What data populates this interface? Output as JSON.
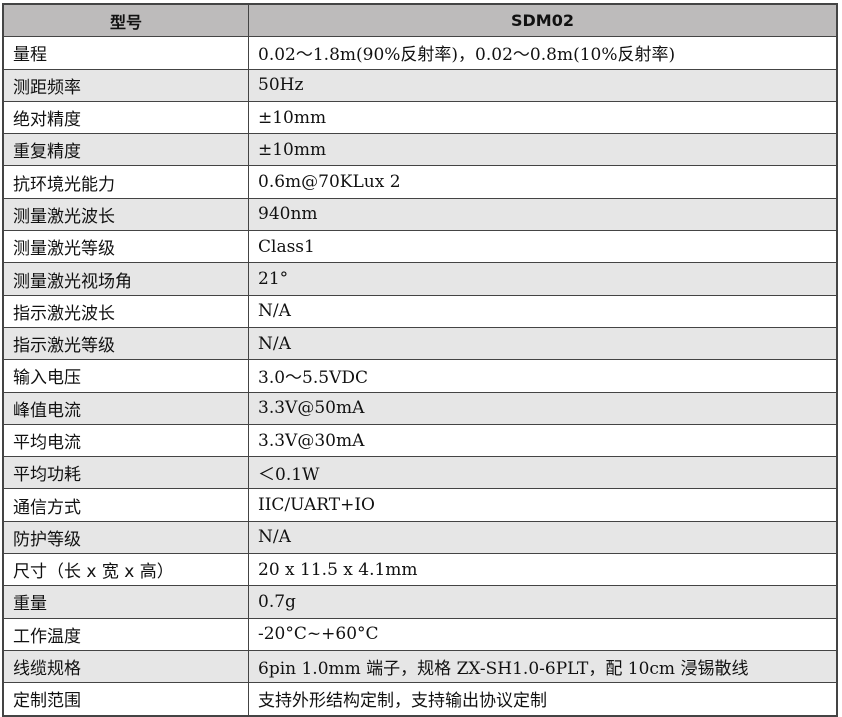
{
  "header": {
    "param": "型号",
    "model": "SDM02"
  },
  "rows": [
    {
      "label": "量程",
      "value": "0.02～1.8m(90%反射率)，0.02～0.8m(10%反射率)"
    },
    {
      "label": "测距频率",
      "value": "50Hz"
    },
    {
      "label": "绝对精度",
      "value": "±10mm"
    },
    {
      "label": "重复精度",
      "value": "±10mm"
    },
    {
      "label": "抗环境光能力",
      "value": "0.6m@70KLux 2"
    },
    {
      "label": "测量激光波长",
      "value": "940nm"
    },
    {
      "label": "测量激光等级",
      "value": "Class1"
    },
    {
      "label": "测量激光视场角",
      "value": "21°"
    },
    {
      "label": "指示激光波长",
      "value": "N/A"
    },
    {
      "label": "指示激光等级",
      "value": "N/A"
    },
    {
      "label": "输入电压",
      "value": "3.0～5.5VDC"
    },
    {
      "label": "峰值电流",
      "value": "3.3V@50mA"
    },
    {
      "label": "平均电流",
      "value": "3.3V@30mA"
    },
    {
      "label": "平均功耗",
      "value": "＜0.1W"
    },
    {
      "label": "通信方式",
      "value": "IIC/UART+IO"
    },
    {
      "label": "防护等级",
      "value": "N/A"
    },
    {
      "label": "尺寸（长 x 宽 x 高）",
      "value": "20 x 11.5 x 4.1mm"
    },
    {
      "label": "重量",
      "value": "0.7g"
    },
    {
      "label": "工作温度",
      "value": "-20°C~+60°C"
    },
    {
      "label": "线缆规格",
      "value": "6pin 1.0mm 端子，规格 ZX-SH1.0-6PLT，配 10cm 浸锡散线"
    },
    {
      "label": "定制范围",
      "value": "支持外形结构定制，支持输出协议定制"
    }
  ]
}
